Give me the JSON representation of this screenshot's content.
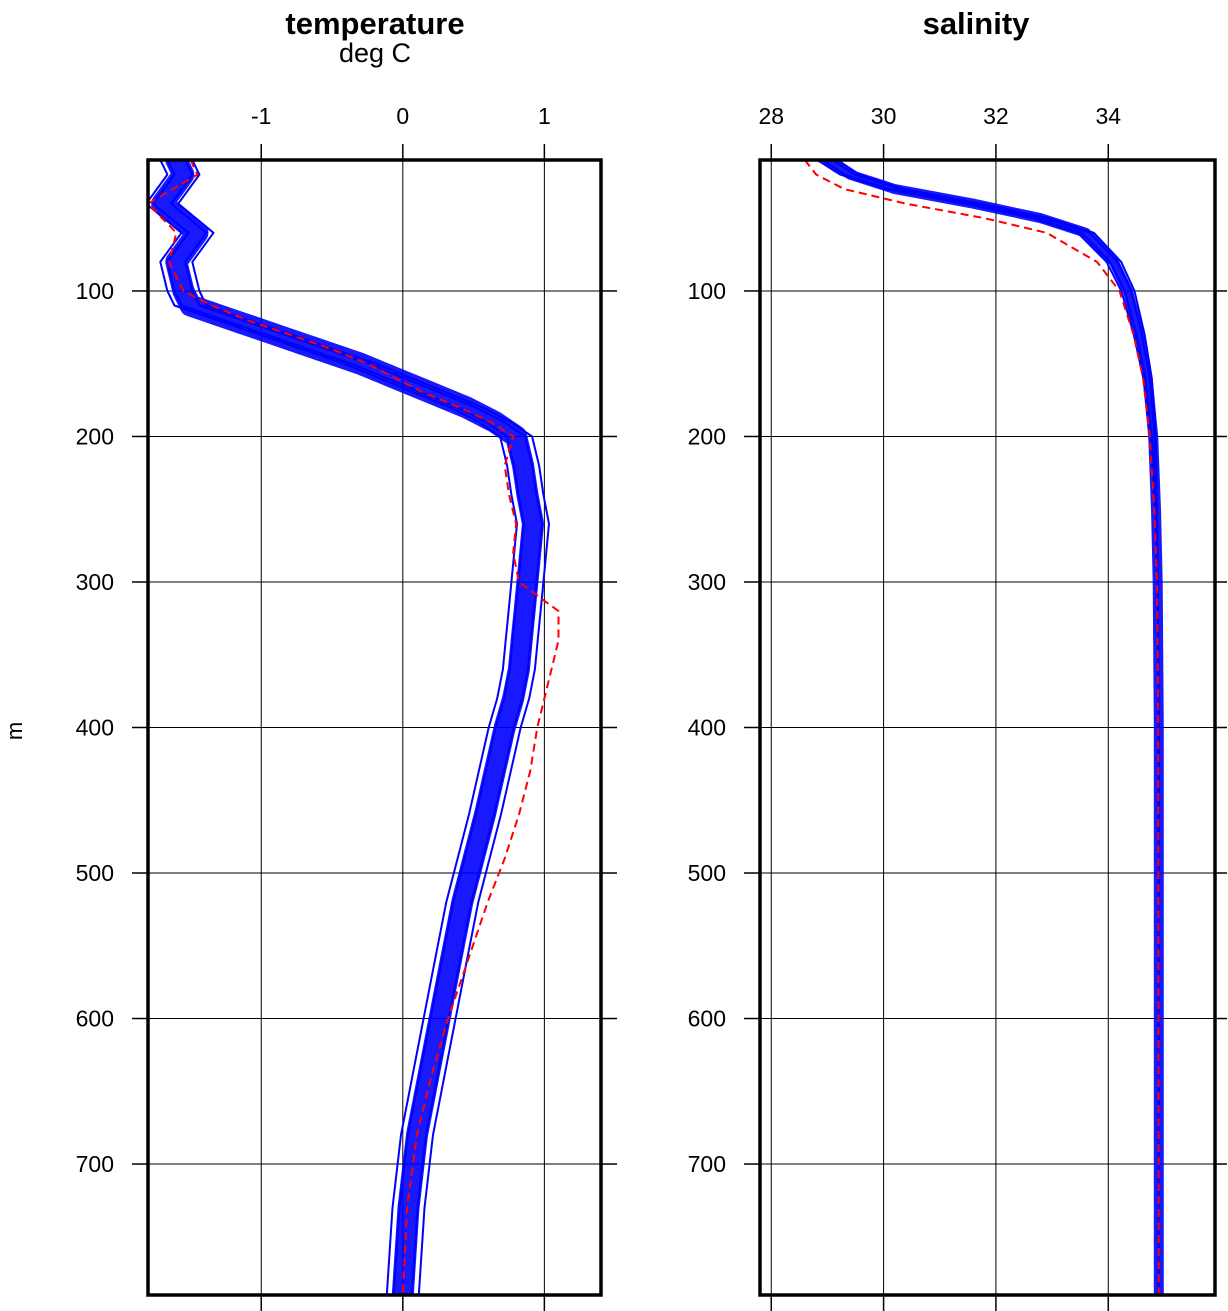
{
  "chart_data": [
    {
      "type": "line",
      "title": "temperature",
      "subtitle": "deg C",
      "ylabel": "m",
      "xlim": [
        -1.8,
        1.4
      ],
      "ylim": [
        10,
        790
      ],
      "y_reversed": true,
      "x_ticks": [
        "-1",
        "0",
        "1"
      ],
      "x_tick_values": [
        -1,
        0,
        1
      ],
      "y_ticks": [
        "100",
        "200",
        "300",
        "400",
        "500",
        "600",
        "700"
      ],
      "y_tick_values": [
        100,
        200,
        300,
        400,
        500,
        600,
        700
      ],
      "grid": true,
      "colors": {
        "mean": "#0000ff",
        "spread": "#ff0000",
        "axis": "#000000"
      },
      "series": [
        {
          "role": "profile-ensemble",
          "style": "solid",
          "color": "#0000ff",
          "x": [
            -1.6,
            -1.55,
            -1.7,
            -1.45,
            -1.6,
            -1.55,
            -1.5,
            -1.2,
            -0.9,
            -0.6,
            -0.3,
            -0.05,
            0.2,
            0.45,
            0.65,
            0.8,
            0.85,
            0.88,
            0.92,
            0.9,
            0.88,
            0.86,
            0.84,
            0.82,
            0.78,
            0.72,
            0.65,
            0.58,
            0.5,
            0.42,
            0.34,
            0.26,
            0.18,
            0.1,
            0.04,
            0.0
          ],
          "y": [
            10,
            20,
            40,
            60,
            80,
            100,
            110,
            120,
            130,
            140,
            150,
            160,
            170,
            180,
            190,
            200,
            220,
            240,
            260,
            280,
            300,
            320,
            340,
            360,
            380,
            400,
            430,
            460,
            490,
            520,
            560,
            600,
            640,
            680,
            730,
            790
          ]
        },
        {
          "role": "profile-ensemble-outer",
          "style": "dashed",
          "color": "#ff0000",
          "x": [
            -1.5,
            -1.45,
            -1.8,
            -1.6,
            -1.65,
            -1.55,
            -1.35,
            -1.1,
            -0.8,
            -0.5,
            -0.25,
            -0.05,
            0.15,
            0.4,
            0.62,
            0.78,
            0.72,
            0.75,
            0.8,
            0.78,
            0.82,
            1.1,
            1.1,
            1.05,
            1.0,
            0.95,
            0.9,
            0.82,
            0.72,
            0.6,
            0.46,
            0.32,
            0.2,
            0.1,
            0.03,
            0.0
          ],
          "y": [
            10,
            20,
            40,
            60,
            80,
            100,
            110,
            120,
            130,
            140,
            150,
            160,
            170,
            180,
            190,
            200,
            220,
            240,
            260,
            280,
            300,
            320,
            340,
            360,
            380,
            400,
            430,
            460,
            490,
            520,
            560,
            600,
            640,
            680,
            730,
            790
          ]
        }
      ]
    },
    {
      "type": "line",
      "title": "salinity",
      "xlim": [
        27.8,
        35.9
      ],
      "ylim": [
        10,
        790
      ],
      "y_reversed": true,
      "x_ticks": [
        "28",
        "30",
        "32",
        "34"
      ],
      "x_tick_values": [
        28,
        30,
        32,
        34
      ],
      "y_ticks": [
        "100",
        "200",
        "300",
        "400",
        "500",
        "600",
        "700"
      ],
      "y_tick_values": [
        100,
        200,
        300,
        400,
        500,
        600,
        700
      ],
      "grid": true,
      "colors": {
        "mean": "#0000ff",
        "spread": "#ff0000",
        "axis": "#000000"
      },
      "series": [
        {
          "role": "profile-ensemble",
          "style": "solid",
          "color": "#0000ff",
          "x": [
            29.0,
            29.4,
            30.2,
            31.6,
            32.8,
            33.6,
            34.1,
            34.35,
            34.55,
            34.7,
            34.8,
            34.85,
            34.88,
            34.9,
            34.9
          ],
          "y": [
            10,
            20,
            30,
            40,
            50,
            60,
            80,
            100,
            130,
            160,
            200,
            250,
            300,
            400,
            790
          ]
        },
        {
          "role": "profile-ensemble-outer",
          "style": "dashed",
          "color": "#ff0000",
          "x": [
            28.6,
            28.8,
            29.3,
            30.4,
            31.8,
            32.9,
            33.8,
            34.2,
            34.45,
            34.62,
            34.74,
            34.82,
            34.87,
            34.89,
            34.9
          ],
          "y": [
            10,
            20,
            30,
            40,
            50,
            60,
            80,
            100,
            130,
            160,
            200,
            250,
            300,
            400,
            790
          ]
        }
      ]
    }
  ]
}
